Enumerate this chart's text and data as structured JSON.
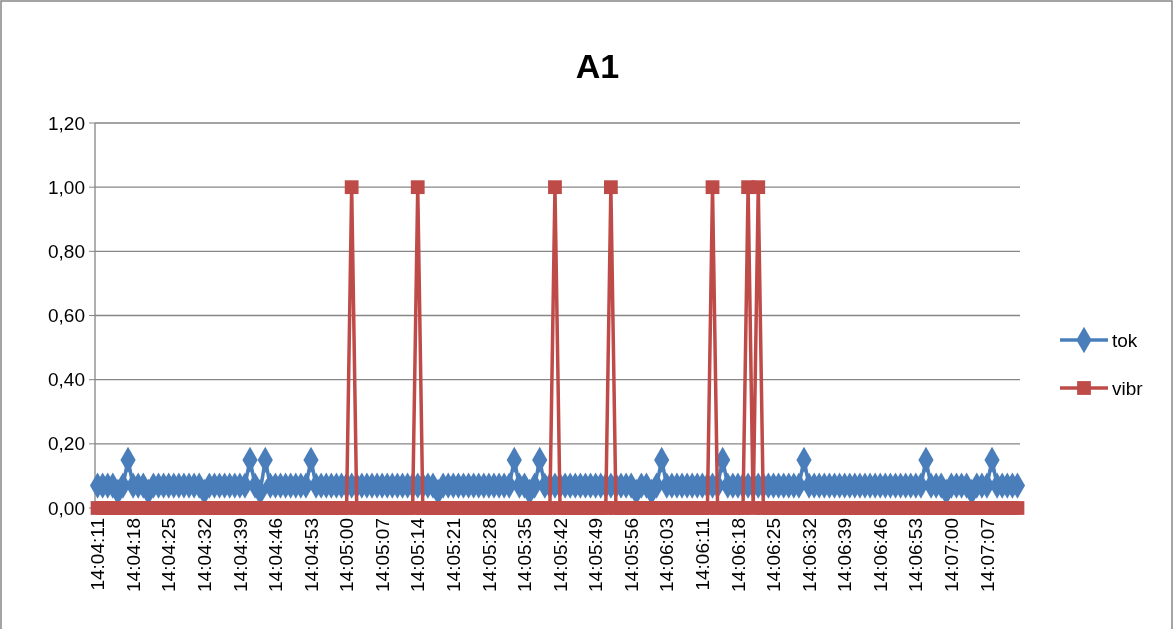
{
  "chart_data": {
    "type": "line",
    "title": "A1",
    "categories": [
      "14:04:11",
      null,
      null,
      null,
      null,
      null,
      null,
      "14:04:18",
      null,
      null,
      null,
      null,
      null,
      null,
      "14:04:25",
      null,
      null,
      null,
      null,
      null,
      null,
      "14:04:32",
      null,
      null,
      null,
      null,
      null,
      null,
      "14:04:39",
      null,
      null,
      null,
      null,
      null,
      null,
      "14:04:46",
      null,
      null,
      null,
      null,
      null,
      null,
      "14:04:53",
      null,
      null,
      null,
      null,
      null,
      null,
      "14:05:00",
      null,
      null,
      null,
      null,
      null,
      null,
      "14:05:07",
      null,
      null,
      null,
      null,
      null,
      null,
      "14:05:14",
      null,
      null,
      null,
      null,
      null,
      null,
      "14:05:21",
      null,
      null,
      null,
      null,
      null,
      null,
      "14:05:28",
      null,
      null,
      null,
      null,
      null,
      null,
      "14:05:35",
      null,
      null,
      null,
      null,
      null,
      null,
      "14:05:42",
      null,
      null,
      null,
      null,
      null,
      null,
      "14:05:49",
      null,
      null,
      null,
      null,
      null,
      null,
      "14:05:56",
      null,
      null,
      null,
      null,
      null,
      null,
      "14:06:03",
      null,
      null,
      null,
      null,
      null,
      null,
      "14:06:11",
      null,
      null,
      null,
      null,
      null,
      null,
      "14:06:18",
      null,
      null,
      null,
      null,
      null,
      null,
      "14:06:25",
      null,
      null,
      null,
      null,
      null,
      null,
      "14:06:32",
      null,
      null,
      null,
      null,
      null,
      null,
      "14:06:39",
      null,
      null,
      null,
      null,
      null,
      null,
      "14:06:46",
      null,
      null,
      null,
      null,
      null,
      null,
      "14:06:53",
      null,
      null,
      null,
      null,
      null,
      null,
      "14:07:00",
      null,
      null,
      null,
      null,
      null,
      null,
      "14:07:07",
      null,
      null,
      null,
      null,
      null,
      null
    ],
    "series": [
      {
        "name": "tok",
        "color": "#4a7ebb",
        "marker": "diamond",
        "values": [
          0.07,
          0.07,
          0.07,
          0.07,
          0.05,
          0.07,
          0.15,
          0.07,
          0.07,
          0.07,
          0.05,
          0.07,
          0.07,
          0.07,
          0.07,
          0.07,
          0.07,
          0.07,
          0.07,
          0.07,
          0.07,
          0.05,
          0.07,
          0.07,
          0.07,
          0.07,
          0.07,
          0.07,
          0.07,
          0.07,
          0.15,
          0.07,
          0.05,
          0.15,
          0.07,
          0.07,
          0.07,
          0.07,
          0.07,
          0.07,
          0.07,
          0.07,
          0.15,
          0.07,
          0.07,
          0.07,
          0.07,
          0.07,
          0.07,
          0.07,
          0.07,
          0.07,
          0.07,
          0.07,
          0.07,
          0.07,
          0.07,
          0.07,
          0.07,
          0.07,
          0.07,
          0.07,
          0.07,
          0.07,
          0.07,
          0.07,
          0.07,
          0.05,
          0.07,
          0.07,
          0.07,
          0.07,
          0.07,
          0.07,
          0.07,
          0.07,
          0.07,
          0.07,
          0.07,
          0.07,
          0.07,
          0.07,
          0.15,
          0.07,
          0.07,
          0.05,
          0.07,
          0.15,
          0.07,
          0.07,
          0.07,
          0.07,
          0.07,
          0.07,
          0.07,
          0.07,
          0.07,
          0.07,
          0.07,
          0.07,
          0.07,
          0.07,
          0.07,
          0.07,
          0.07,
          0.07,
          0.05,
          0.07,
          0.07,
          0.05,
          0.07,
          0.15,
          0.07,
          0.07,
          0.07,
          0.07,
          0.07,
          0.07,
          0.07,
          0.07,
          0.07,
          0.07,
          0.07,
          0.15,
          0.07,
          0.07,
          0.07,
          0.07,
          0.07,
          0.07,
          0.07,
          0.07,
          0.07,
          0.07,
          0.07,
          0.07,
          0.07,
          0.07,
          0.07,
          0.15,
          0.07,
          0.07,
          0.07,
          0.07,
          0.07,
          0.07,
          0.07,
          0.07,
          0.07,
          0.07,
          0.07,
          0.07,
          0.07,
          0.07,
          0.07,
          0.07,
          0.07,
          0.07,
          0.07,
          0.07,
          0.07,
          0.07,
          0.07,
          0.15,
          0.07,
          0.07,
          0.07,
          0.05,
          0.07,
          0.07,
          0.07,
          0.07,
          0.05,
          0.07,
          0.07,
          0.07,
          0.15,
          0.07,
          0.07,
          0.07,
          0.07,
          0.07
        ]
      },
      {
        "name": "vibr",
        "color": "#be4b48",
        "marker": "square",
        "values": [
          0,
          0,
          0,
          0,
          0,
          0,
          0,
          0,
          0,
          0,
          0,
          0,
          0,
          0,
          0,
          0,
          0,
          0,
          0,
          0,
          0,
          0,
          0,
          0,
          0,
          0,
          0,
          0,
          0,
          0,
          0,
          0,
          0,
          0,
          0,
          0,
          0,
          0,
          0,
          0,
          0,
          0,
          0,
          0,
          0,
          0,
          0,
          0,
          0,
          0,
          1,
          0,
          0,
          0,
          0,
          0,
          0,
          0,
          0,
          0,
          0,
          0,
          0,
          1,
          0,
          0,
          0,
          0,
          0,
          0,
          0,
          0,
          0,
          0,
          0,
          0,
          0,
          0,
          0,
          0,
          0,
          0,
          0,
          0,
          0,
          0,
          0,
          0,
          0,
          0,
          1,
          0,
          0,
          0,
          0,
          0,
          0,
          0,
          0,
          0,
          0,
          1,
          0,
          0,
          0,
          0,
          0,
          0,
          0,
          0,
          0,
          0,
          0,
          0,
          0,
          0,
          0,
          0,
          0,
          0,
          0,
          1,
          0,
          0,
          0,
          0,
          0,
          0,
          1,
          0,
          1,
          0,
          0,
          0,
          0,
          0,
          0,
          0,
          0,
          0,
          0,
          0,
          0,
          0,
          0,
          0,
          0,
          0,
          0,
          0,
          0,
          0,
          0,
          0,
          0,
          0,
          0,
          0,
          0,
          0,
          0,
          0,
          0,
          0,
          0,
          0,
          0,
          0,
          0,
          0,
          0,
          0,
          0,
          0,
          0,
          0,
          0,
          0,
          0,
          0,
          0,
          0
        ]
      }
    ],
    "ylim": [
      0,
      1.2
    ],
    "yticks": [
      {
        "value": 0,
        "label": "0,00"
      },
      {
        "value": 0.2,
        "label": "0,20"
      },
      {
        "value": 0.4,
        "label": "0,40"
      },
      {
        "value": 0.6,
        "label": "0,60"
      },
      {
        "value": 0.8,
        "label": "0,80"
      },
      {
        "value": 1,
        "label": "1,00"
      },
      {
        "value": 1.2,
        "label": "1,20"
      }
    ],
    "grid": "y",
    "legend": "right",
    "line_style": "solid"
  }
}
